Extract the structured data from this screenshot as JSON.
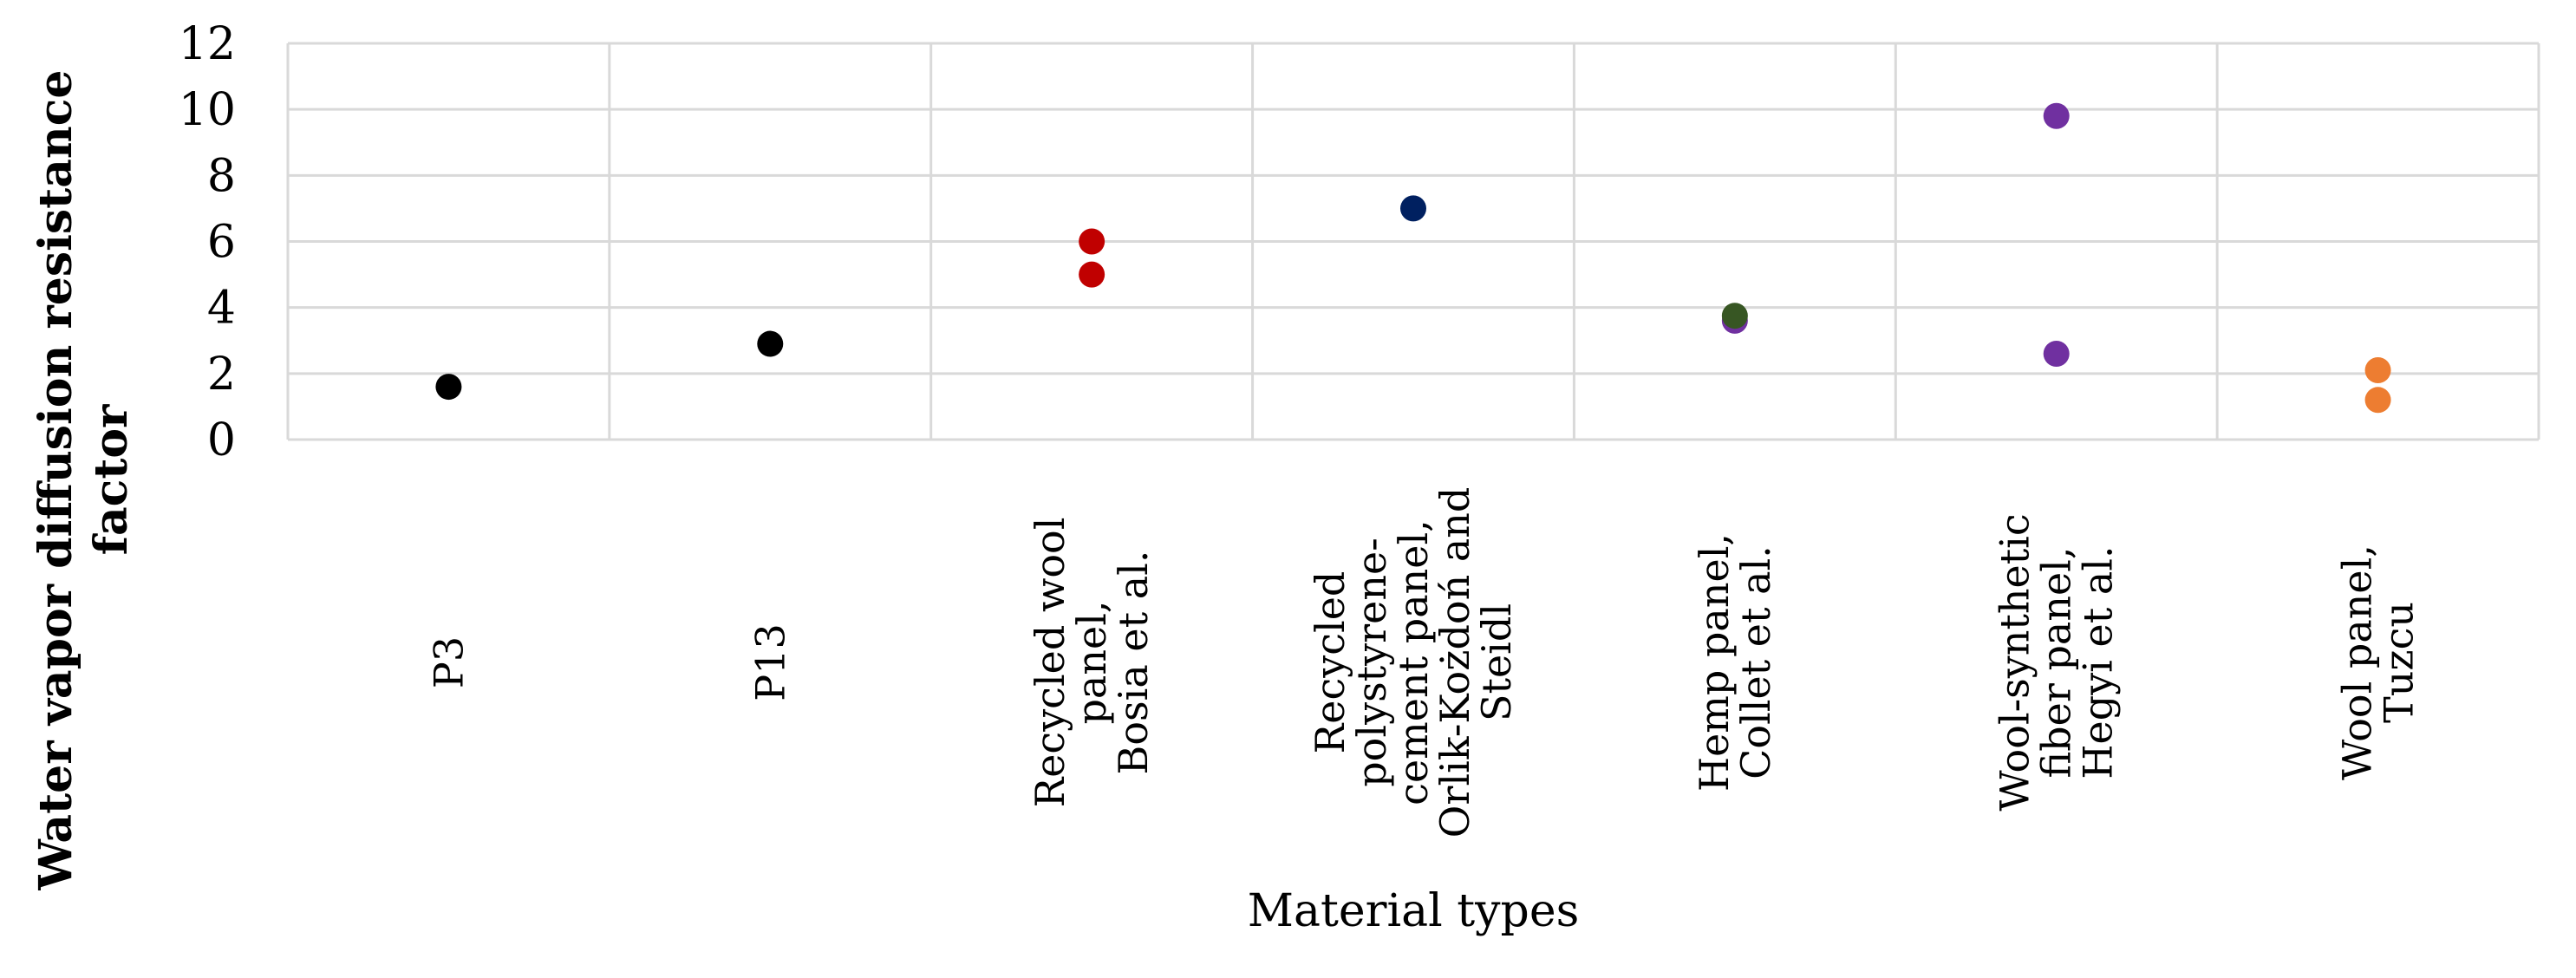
{
  "chart_data": {
    "type": "scatter",
    "title": "",
    "xlabel": "Material types",
    "ylabel_lines": [
      "Water vapor diffusion resistance",
      "factor"
    ],
    "ylim": [
      0,
      12
    ],
    "yticks": [
      0,
      2,
      4,
      6,
      8,
      10,
      12
    ],
    "grid": true,
    "legend": "none",
    "categories": [
      {
        "lines": [
          "P3"
        ]
      },
      {
        "lines": [
          "P13"
        ]
      },
      {
        "lines": [
          "Recycled wool",
          "panel,",
          "Bosia et al."
        ]
      },
      {
        "lines": [
          "Recycled",
          "polystyrene-",
          "cement panel,",
          "Orlik-Kożdoń and",
          "Steidl"
        ]
      },
      {
        "lines": [
          "Hemp panel,",
          "Collet et al."
        ]
      },
      {
        "lines": [
          "Wool-synthetic",
          "fiber panel,",
          "Hegyi et al."
        ]
      },
      {
        "lines": [
          "Wool panel,",
          "Tuzcu"
        ]
      }
    ],
    "points": [
      {
        "category": 0,
        "y": 1.6,
        "color": "#000000"
      },
      {
        "category": 1,
        "y": 2.9,
        "color": "#000000"
      },
      {
        "category": 2,
        "y": 6.0,
        "color": "#c00000"
      },
      {
        "category": 2,
        "y": 5.0,
        "color": "#c00000"
      },
      {
        "category": 3,
        "y": 7.0,
        "color": "#002060"
      },
      {
        "category": 4,
        "y": 3.6,
        "color": "#7030a0"
      },
      {
        "category": 4,
        "y": 3.75,
        "color": "#375623"
      },
      {
        "category": 5,
        "y": 9.8,
        "color": "#7030a0"
      },
      {
        "category": 5,
        "y": 2.6,
        "color": "#7030a0"
      },
      {
        "category": 6,
        "y": 2.1,
        "color": "#ed7d31"
      },
      {
        "category": 6,
        "y": 1.2,
        "color": "#ed7d31"
      }
    ]
  }
}
